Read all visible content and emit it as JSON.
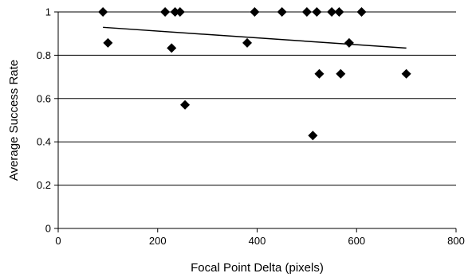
{
  "chart_data": {
    "type": "scatter",
    "title": "",
    "xlabel": "Focal Point Delta (pixels)",
    "ylabel": "Average Success Rate",
    "xlim": [
      0,
      800
    ],
    "ylim": [
      0,
      1
    ],
    "xticks": [
      0,
      200,
      400,
      600,
      800
    ],
    "yticks": [
      0,
      0.2,
      0.4,
      0.6,
      0.8,
      1
    ],
    "xtick_labels": [
      "0",
      "200",
      "400",
      "600",
      "800"
    ],
    "ytick_labels": [
      "0",
      "0.2",
      "0.4",
      "0.6",
      "0.8",
      "1"
    ],
    "grid": "horizontal",
    "legend": "none",
    "marker": "diamond",
    "marker_color": "#000000",
    "points": [
      {
        "x": 90,
        "y": 1.0
      },
      {
        "x": 100,
        "y": 0.857
      },
      {
        "x": 215,
        "y": 1.0
      },
      {
        "x": 228,
        "y": 0.833
      },
      {
        "x": 235,
        "y": 1.0
      },
      {
        "x": 245,
        "y": 1.0
      },
      {
        "x": 255,
        "y": 0.571
      },
      {
        "x": 380,
        "y": 0.857
      },
      {
        "x": 395,
        "y": 1.0
      },
      {
        "x": 450,
        "y": 1.0
      },
      {
        "x": 500,
        "y": 1.0
      },
      {
        "x": 512,
        "y": 0.429
      },
      {
        "x": 520,
        "y": 1.0
      },
      {
        "x": 525,
        "y": 0.714
      },
      {
        "x": 550,
        "y": 1.0
      },
      {
        "x": 565,
        "y": 1.0
      },
      {
        "x": 568,
        "y": 0.714
      },
      {
        "x": 585,
        "y": 0.857
      },
      {
        "x": 610,
        "y": 1.0
      },
      {
        "x": 700,
        "y": 0.714
      }
    ],
    "trendline": {
      "x": [
        90,
        700
      ],
      "y": [
        0.929,
        0.833
      ]
    }
  }
}
